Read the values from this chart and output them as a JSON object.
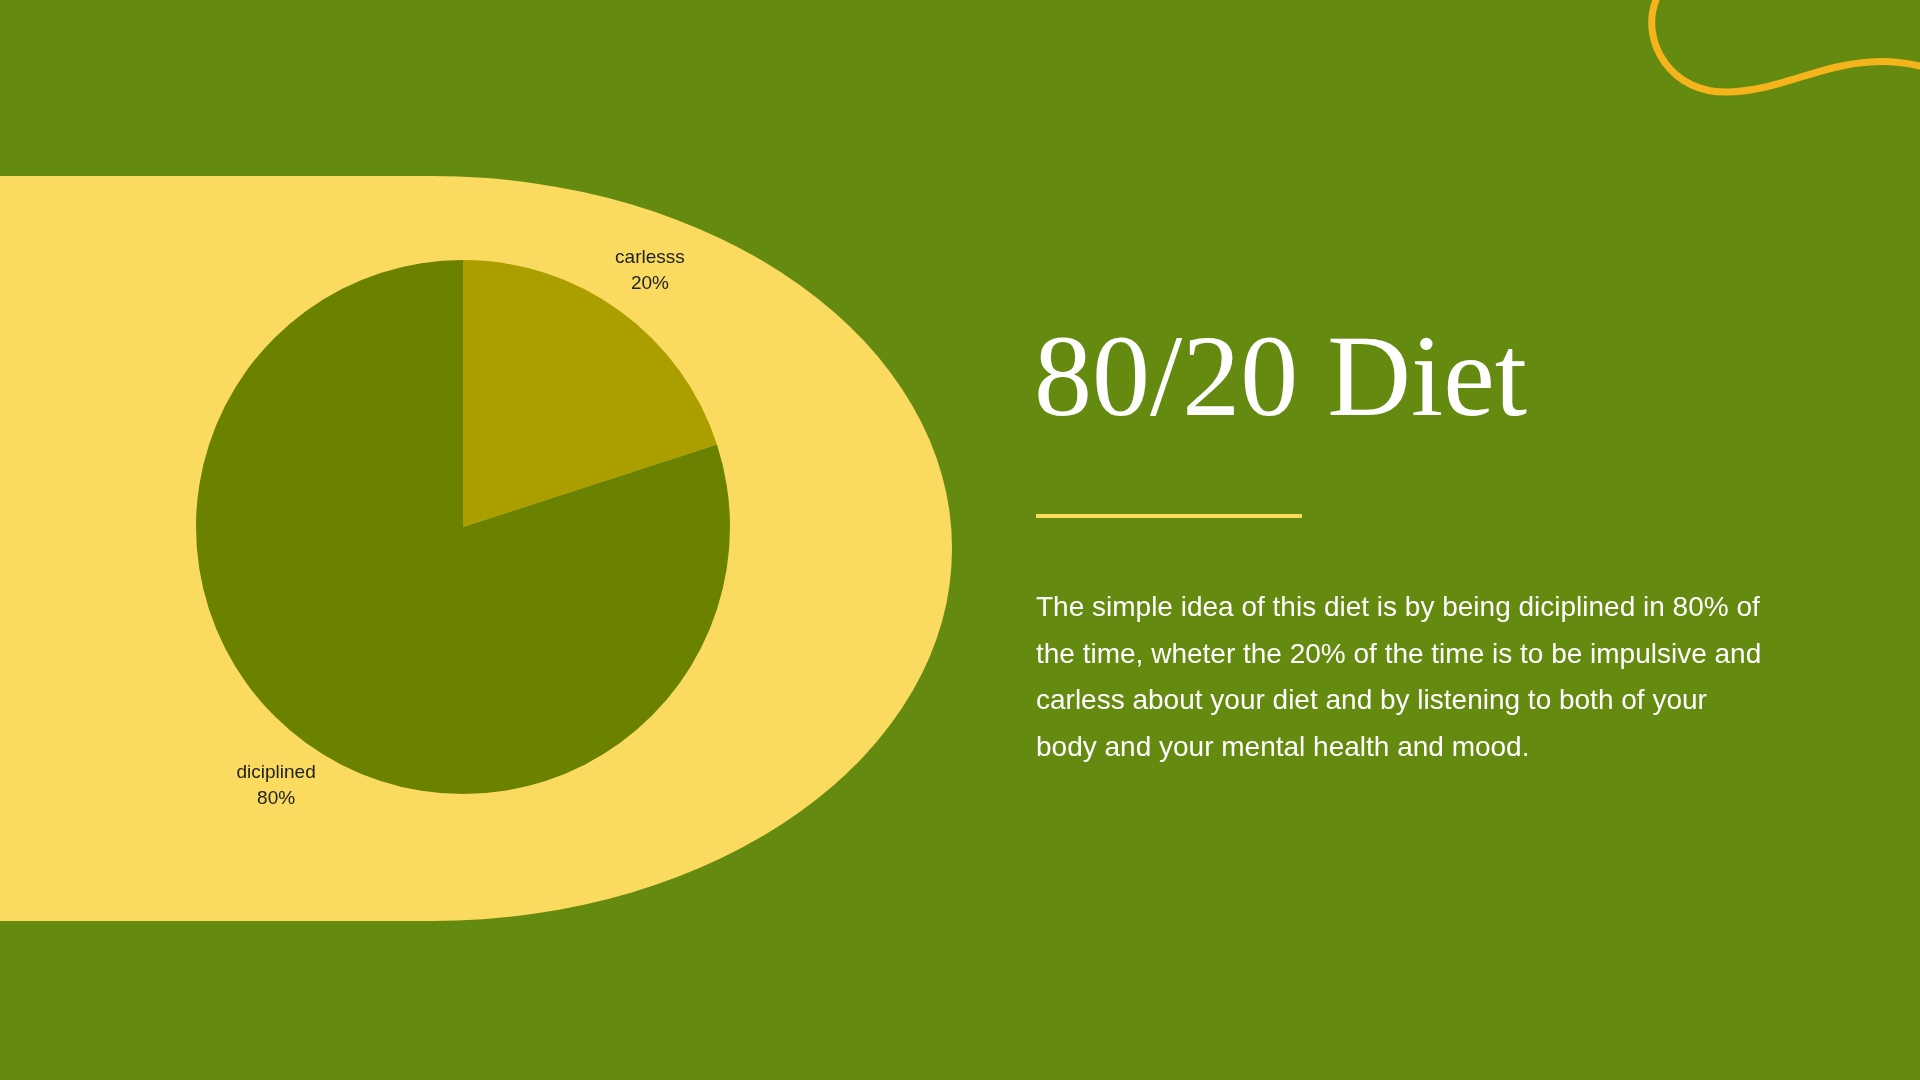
{
  "chart_data": {
    "type": "pie",
    "title": "80/20 Diet",
    "categories": [
      "carlesss",
      "diciplined"
    ],
    "values": [
      20,
      80
    ],
    "colors": [
      "#ab9f00",
      "#6a8200"
    ],
    "value_labels": [
      "20%",
      "80%"
    ],
    "legend": false,
    "annotations": [
      "The simple idea of this diet is by being diciplined in 80% of the time, wheter the 20% of the time is to be impulsive and carless about your diet and by listening to both of your body and your mental health and mood."
    ]
  }
}
